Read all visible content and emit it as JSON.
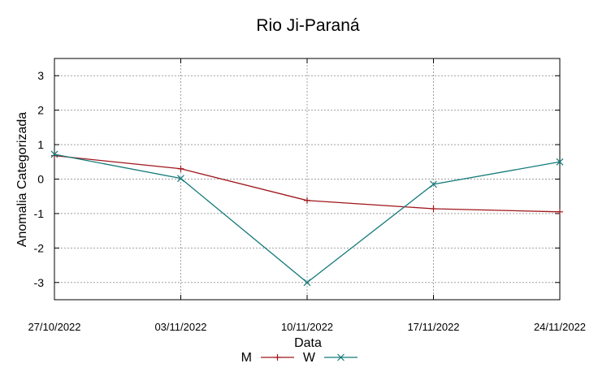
{
  "chart_data": {
    "type": "line",
    "title": "Rio Ji-Paraná",
    "xlabel": "Data",
    "ylabel": "Anomalia Categorizada",
    "x": [
      "27/10/2022",
      "03/11/2022",
      "10/11/2022",
      "17/11/2022",
      "24/11/2022"
    ],
    "ylim": [
      -3.5,
      3.5
    ],
    "yticks": [
      -3,
      -2,
      -1,
      0,
      1,
      2,
      3
    ],
    "grid": true,
    "legend_position": "bottom-center",
    "series": [
      {
        "name": "M",
        "color": "#a0161c",
        "marker": "plus",
        "values": [
          0.68,
          0.3,
          -0.62,
          -0.86,
          -0.95
        ]
      },
      {
        "name": "W",
        "color": "#147a7a",
        "marker": "cross",
        "values": [
          0.72,
          0.02,
          -3.0,
          -0.15,
          0.5
        ]
      }
    ]
  }
}
